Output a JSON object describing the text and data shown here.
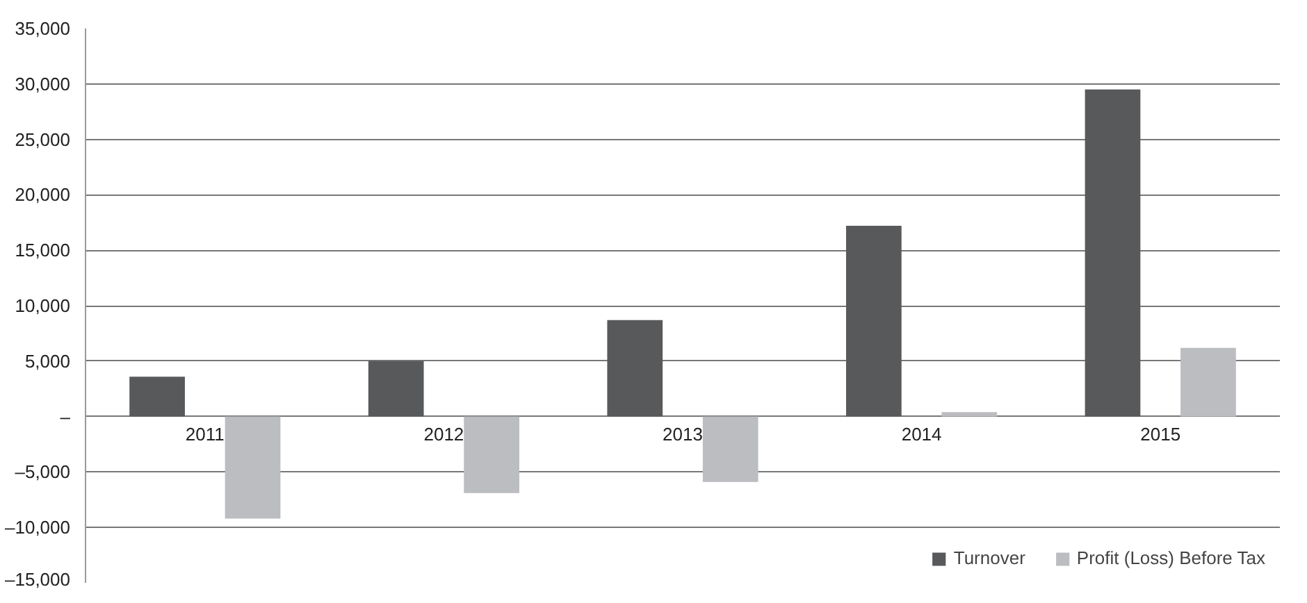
{
  "chart_data": {
    "type": "bar",
    "categories": [
      "2011",
      "2012",
      "2013",
      "2014",
      "2015"
    ],
    "series": [
      {
        "name": "Turnover",
        "color": "#58595b",
        "values": [
          3600,
          5000,
          8700,
          17200,
          29500
        ]
      },
      {
        "name": "Profit (Loss) Before Tax",
        "color": "#bcbdc0",
        "values": [
          -9200,
          -6900,
          -5900,
          400,
          6200
        ]
      }
    ],
    "ylim": [
      -15000,
      35000
    ],
    "yticks": [
      {
        "value": -15000,
        "label": "–15,000"
      },
      {
        "value": -10000,
        "label": "–10,000"
      },
      {
        "value": -5000,
        "label": "–5,000"
      },
      {
        "value": 0,
        "label": "–"
      },
      {
        "value": 5000,
        "label": "5,000"
      },
      {
        "value": 10000,
        "label": "10,000"
      },
      {
        "value": 15000,
        "label": "15,000"
      },
      {
        "value": 20000,
        "label": "20,000"
      },
      {
        "value": 25000,
        "label": "25,000"
      },
      {
        "value": 30000,
        "label": "30,000"
      },
      {
        "value": 35000,
        "label": "35,000"
      }
    ],
    "grid": "y",
    "legend": "bottom right"
  }
}
